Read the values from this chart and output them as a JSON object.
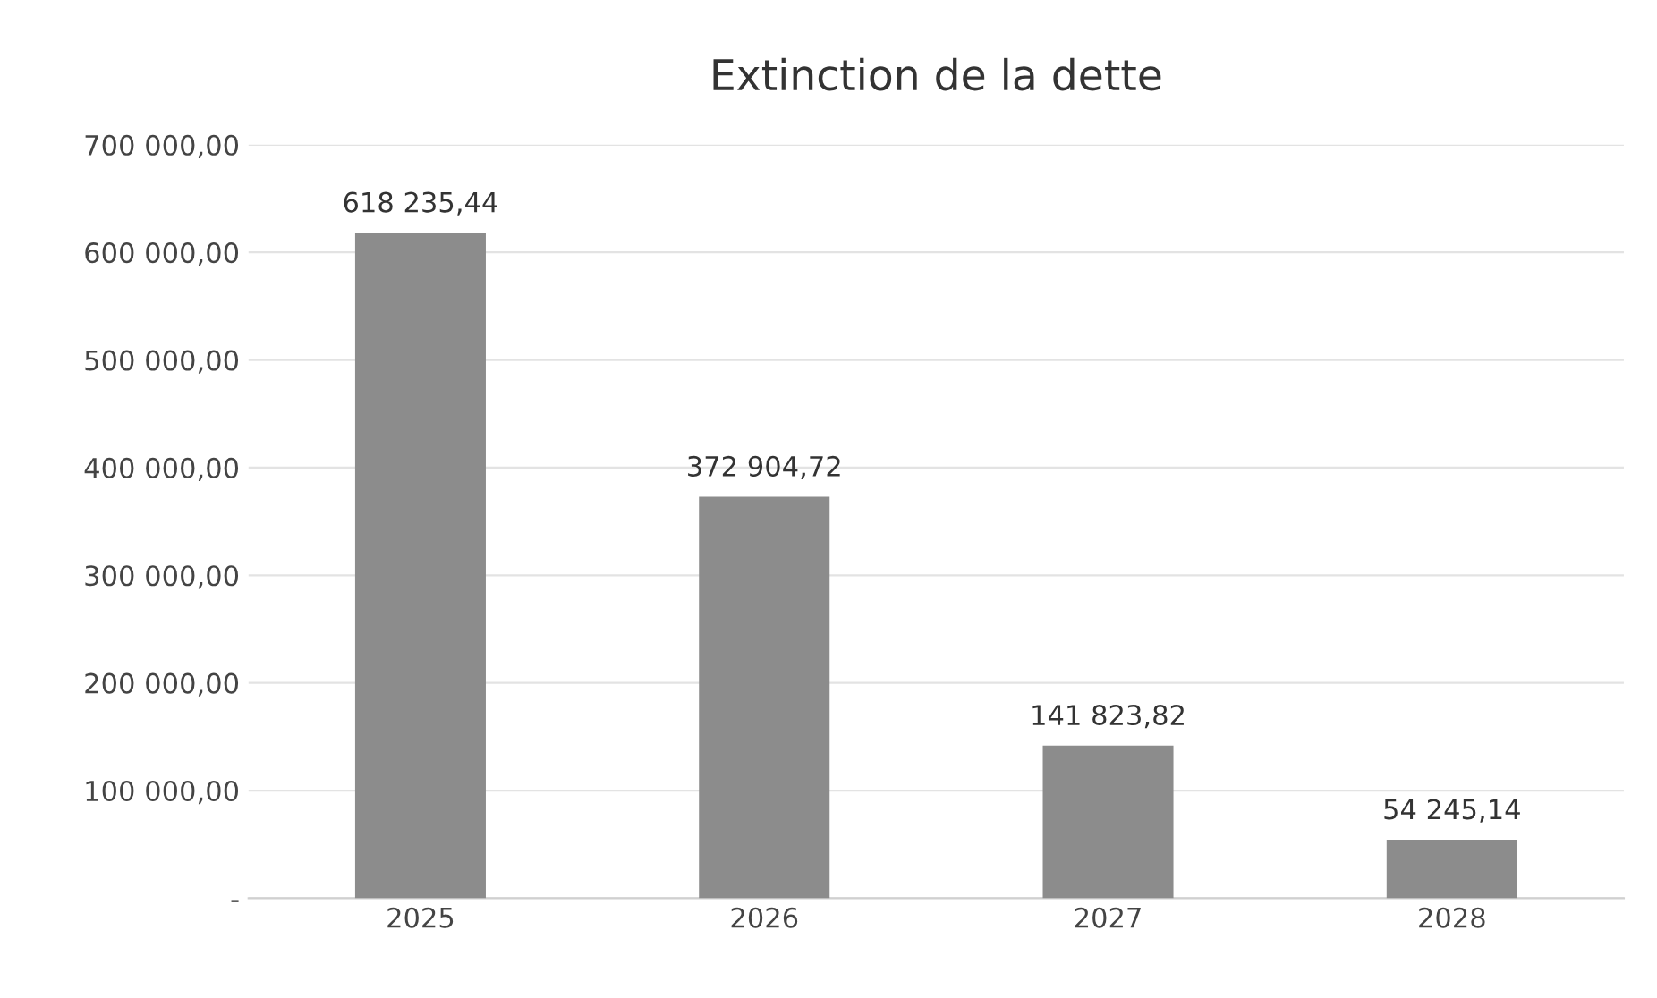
{
  "chart_data": {
    "type": "bar",
    "title": "Extinction de la dette",
    "categories": [
      "2025",
      "2026",
      "2027",
      "2028"
    ],
    "values": [
      618235.44,
      372904.72,
      141823.82,
      54245.14
    ],
    "value_labels": [
      "618 235,44",
      "372 904,72",
      "141 823,82",
      "54 245,14"
    ],
    "color": "#8c8c8c",
    "ylim": [
      0,
      700000
    ],
    "yticks": [
      {
        "value": 0,
        "label": "-"
      },
      {
        "value": 100000,
        "label": "100 000,00"
      },
      {
        "value": 200000,
        "label": "200 000,00"
      },
      {
        "value": 300000,
        "label": "300 000,00"
      },
      {
        "value": 400000,
        "label": "400 000,00"
      },
      {
        "value": 500000,
        "label": "500 000,00"
      },
      {
        "value": 600000,
        "label": "600 000,00"
      },
      {
        "value": 700000,
        "label": "700 000,00"
      }
    ],
    "grid": "y",
    "legend": false
  }
}
